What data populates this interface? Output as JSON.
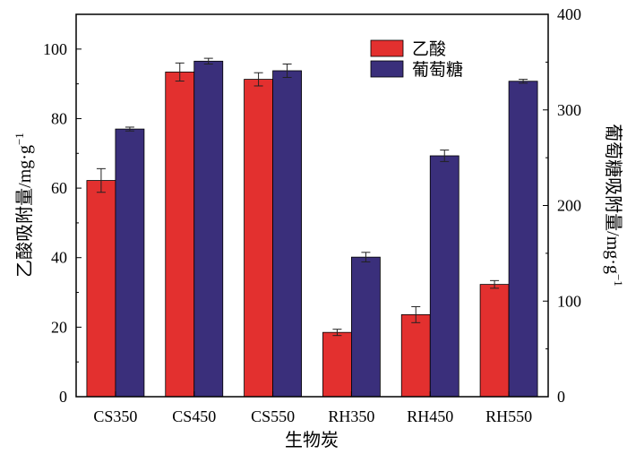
{
  "chart_data": {
    "type": "bar",
    "categories": [
      "CS350",
      "CS450",
      "CS550",
      "RH350",
      "RH450",
      "RH550"
    ],
    "xlabel": "生物炭",
    "ylabel_left": "乙酸吸附量/mg·g",
    "ylabel_left_sup": "−1",
    "ylabel_right": "葡萄糖吸附量/mg·g",
    "ylabel_right_sup": "−1",
    "ylim_left": [
      0,
      110
    ],
    "ylim_right": [
      0,
      400
    ],
    "yticks_left": [
      0,
      20,
      40,
      60,
      80,
      100
    ],
    "yticks_right": [
      0,
      100,
      200,
      300,
      400
    ],
    "legend_position": "top-right",
    "grid": false,
    "series": [
      {
        "name": "乙酸",
        "axis": "left",
        "color": "#e3302f",
        "values": [
          62.2,
          93.4,
          91.3,
          18.5,
          23.6,
          32.3
        ],
        "errors": [
          3.4,
          2.6,
          1.9,
          0.9,
          2.3,
          1.1
        ]
      },
      {
        "name": "葡萄糖",
        "axis": "right",
        "color": "#3a2f7b",
        "values": [
          280,
          351,
          341,
          146,
          252,
          330
        ],
        "errors": [
          2,
          3,
          7,
          5,
          6,
          2
        ]
      }
    ]
  }
}
